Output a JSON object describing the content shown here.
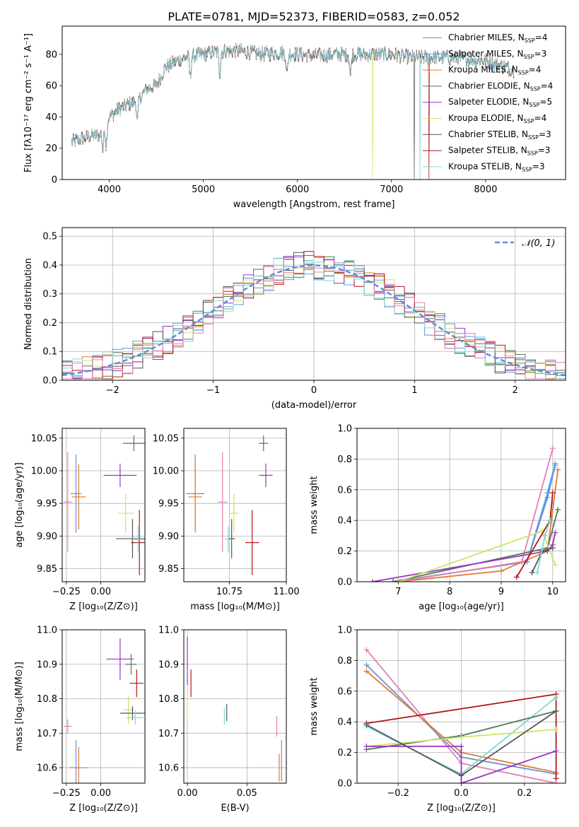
{
  "figure": {
    "title": "PLATE=0781, MJD=52373, FIBERID=0583, z=0.052"
  },
  "colors": {
    "Chabrier MILES": "#6a8fd8",
    "Salpeter MILES": "#4aa3e8",
    "Kroupa MILES": "#e07a2e",
    "Chabrier ELODIE": "#4f7a4f",
    "Salpeter ELODIE": "#9a32c8",
    "Kroupa ELODIE": "#cfe36a",
    "Chabrier STELIB": "#555555",
    "Salpeter STELIB": "#b3171a",
    "Kroupa STELIB": "#82d6dc",
    "pink": "#e67fb5",
    "normal": "#5b8fd6"
  },
  "chart_data": [
    {
      "id": "spectrum",
      "type": "line",
      "title": "PLATE=0781, MJD=52373, FIBERID=0583, z=0.052",
      "xlabel": "wavelength [Angstrom, rest frame]",
      "ylabel": "Flux [fλ10⁻¹⁷ erg cm⁻² s⁻¹ A⁻¹]",
      "xlim": [
        3500,
        8850
      ],
      "ylim": [
        0,
        98
      ],
      "xticks": [
        4000,
        5000,
        6000,
        7000,
        8000
      ],
      "yticks": [
        0,
        20,
        40,
        60,
        80
      ],
      "grid": false,
      "legend_position": "top-right",
      "legend": [
        {
          "name": "Chabrier MILES",
          "sub": "4"
        },
        {
          "name": "Salpeter MILES",
          "sub": "3"
        },
        {
          "name": "Kroupa MILES",
          "sub": "4"
        },
        {
          "name": "Chabrier ELODIE",
          "sub": "4"
        },
        {
          "name": "Salpeter ELODIE",
          "sub": "5"
        },
        {
          "name": "Kroupa ELODIE",
          "sub": "4"
        },
        {
          "name": "Chabrier STELIB",
          "sub": "3"
        },
        {
          "name": "Salpeter STELIB",
          "sub": "3"
        },
        {
          "name": "Kroupa STELIB",
          "sub": "3"
        }
      ],
      "continuum": {
        "x": [
          3600,
          3700,
          3800,
          3900,
          4000,
          4100,
          4200,
          4300,
          4400,
          4500,
          4600,
          4800,
          5000,
          5200,
          5400,
          5600,
          5800,
          6000,
          6200,
          6400,
          6600,
          6800,
          7000,
          7200,
          7400,
          7600,
          7800,
          8000,
          8200,
          8300
        ],
        "y": [
          24,
          26,
          28,
          28,
          40,
          45,
          48,
          50,
          58,
          60,
          72,
          78,
          80,
          82,
          82,
          80,
          81,
          80,
          79,
          80,
          80,
          80,
          80,
          78,
          78,
          78,
          77,
          76,
          72,
          70
        ]
      },
      "absorption": [
        3933,
        3968,
        4300,
        4861,
        5175,
        5890,
        6563
      ],
      "cutoffs": [
        {
          "series": "Kroupa ELODIE",
          "x": 6800
        },
        {
          "series": "Chabrier STELIB",
          "x": 7240
        },
        {
          "series": "Salpeter STELIB",
          "x": 7400
        },
        {
          "series": "Kroupa STELIB",
          "x": 7300
        }
      ]
    },
    {
      "id": "residuals",
      "type": "line",
      "xlabel": "(data-model)/error",
      "ylabel": "Normed distribution",
      "xlim": [
        -2.5,
        2.5
      ],
      "ylim": [
        0,
        0.53
      ],
      "xticks": [
        -2,
        -1,
        0,
        1,
        2
      ],
      "yticks": [
        0.0,
        0.1,
        0.2,
        0.3,
        0.4,
        0.5
      ],
      "grid": true,
      "legend_position": "top-right",
      "normal_label": "𝒩(0, 1)",
      "bin_width": 0.1
    },
    {
      "id": "age_vs_Z",
      "type": "scatter",
      "xlabel": "Z [log₁₀(Z/Z⊙)]",
      "ylabel": "age  [log₁₀(age/yr)]",
      "xlim": [
        -0.28,
        0.32
      ],
      "ylim": [
        9.83,
        10.065
      ],
      "xticks": [
        -0.25,
        0.0
      ],
      "yticks": [
        9.85,
        9.9,
        9.95,
        10.0,
        10.05
      ],
      "grid": true,
      "points": [
        {
          "color": "Chabrier MILES",
          "x": -0.18,
          "y": 9.965,
          "xerr": 0.04,
          "yerr": 0.06
        },
        {
          "color": "Kroupa MILES",
          "x": -0.16,
          "y": 9.96,
          "xerr": 0.05,
          "yerr": 0.05
        },
        {
          "color": "pink",
          "x": -0.24,
          "y": 9.952,
          "xerr": 0.03,
          "yerr": 0.076
        },
        {
          "color": "Chabrier ELODIE",
          "x": 0.24,
          "y": 10.042,
          "xerr": 0.08,
          "yerr": 0.012
        },
        {
          "color": "Salpeter ELODIE",
          "x": 0.14,
          "y": 9.993,
          "xerr": 0.12,
          "yerr": 0.018
        },
        {
          "color": "Kroupa ELODIE",
          "x": 0.18,
          "y": 9.935,
          "xerr": 0.06,
          "yerr": 0.03
        },
        {
          "color": "Chabrier STELIB",
          "x": 0.23,
          "y": 9.896,
          "xerr": 0.12,
          "yerr": 0.03
        },
        {
          "color": "Salpeter STELIB",
          "x": 0.28,
          "y": 9.89,
          "xerr": 0.06,
          "yerr": 0.05
        },
        {
          "color": "Kroupa STELIB",
          "x": 0.27,
          "y": 9.895,
          "xerr": 0.05,
          "yerr": 0.02
        }
      ]
    },
    {
      "id": "age_vs_mass",
      "type": "scatter",
      "xlabel": "mass [log₁₀(M/M⊙)]",
      "ylabel": "",
      "xlim": [
        10.55,
        11.0
      ],
      "ylim": [
        9.83,
        10.065
      ],
      "xticks": [
        10.75,
        11.0
      ],
      "yticks": [
        9.85,
        9.9,
        9.95,
        10.0,
        10.05
      ],
      "grid": true,
      "points": [
        {
          "color": "Chabrier MILES",
          "x": 10.6,
          "y": 9.965,
          "xerr": 0.04,
          "yerr": 0.06
        },
        {
          "color": "Kroupa MILES",
          "x": 10.6,
          "y": 9.96,
          "xerr": 0.03,
          "yerr": 0.05
        },
        {
          "color": "pink",
          "x": 10.72,
          "y": 9.952,
          "xerr": 0.02,
          "yerr": 0.076
        },
        {
          "color": "Chabrier ELODIE",
          "x": 10.9,
          "y": 10.042,
          "xerr": 0.02,
          "yerr": 0.012
        },
        {
          "color": "Salpeter ELODIE",
          "x": 10.91,
          "y": 9.993,
          "xerr": 0.03,
          "yerr": 0.018
        },
        {
          "color": "Kroupa ELODIE",
          "x": 10.77,
          "y": 9.935,
          "xerr": 0.02,
          "yerr": 0.03
        },
        {
          "color": "Chabrier STELIB",
          "x": 10.76,
          "y": 9.896,
          "xerr": 0.015,
          "yerr": 0.03
        },
        {
          "color": "Salpeter STELIB",
          "x": 10.85,
          "y": 9.89,
          "xerr": 0.03,
          "yerr": 0.05
        },
        {
          "color": "Kroupa STELIB",
          "x": 10.745,
          "y": 9.895,
          "xerr": 0.015,
          "yerr": 0.02
        }
      ]
    },
    {
      "id": "weight_vs_age",
      "type": "line",
      "xlabel": "age  [log₁₀(age/yr)]",
      "ylabel": "mass weight",
      "xlim": [
        6.2,
        10.25
      ],
      "ylim": [
        0,
        1.0
      ],
      "xticks": [
        7,
        8,
        9,
        10
      ],
      "yticks": [
        0.0,
        0.2,
        0.4,
        0.6,
        0.8,
        1.0
      ],
      "grid": true,
      "series": [
        {
          "color": "Salpeter MILES",
          "x": [
            6.9,
            9.5,
            9.9,
            10.05
          ],
          "y": [
            0.0,
            0.13,
            0.58,
            0.77
          ]
        },
        {
          "color": "Chabrier MILES",
          "x": [
            6.9,
            9.5,
            9.9,
            10.05
          ],
          "y": [
            0.0,
            0.13,
            0.55,
            0.76
          ]
        },
        {
          "color": "Kroupa MILES",
          "x": [
            7.0,
            9.0,
            9.9,
            10.1
          ],
          "y": [
            0.0,
            0.07,
            0.2,
            0.73
          ]
        },
        {
          "color": "pink",
          "x": [
            7.0,
            9.4,
            10.0
          ],
          "y": [
            0.0,
            0.13,
            0.87
          ]
        },
        {
          "color": "Chabrier ELODIE",
          "x": [
            6.9,
            9.9,
            10.1
          ],
          "y": [
            0.0,
            0.22,
            0.47
          ]
        },
        {
          "color": "Salpeter ELODIE",
          "x": [
            6.5,
            9.9,
            10.0,
            10.05
          ],
          "y": [
            0.0,
            0.2,
            0.24,
            0.32
          ]
        },
        {
          "color": "Kroupa ELODIE",
          "x": [
            7.0,
            9.8,
            10.05
          ],
          "y": [
            0.0,
            0.33,
            0.11
          ]
        },
        {
          "color": "Chabrier STELIB",
          "x": [
            9.6,
            9.8,
            10.0
          ],
          "y": [
            0.06,
            0.2,
            0.22
          ]
        },
        {
          "color": "Salpeter STELIB",
          "x": [
            9.3,
            9.95,
            10.0
          ],
          "y": [
            0.03,
            0.4,
            0.58
          ]
        },
        {
          "color": "Kroupa STELIB",
          "x": [
            9.7,
            9.85,
            9.95
          ],
          "y": [
            0.06,
            0.3,
            0.4
          ]
        }
      ]
    },
    {
      "id": "mass_vs_Z",
      "type": "scatter",
      "xlabel": "Z [log₁₀(Z/Z⊙)]",
      "ylabel": "mass [log₁₀(M/M⊙)]",
      "xlim": [
        -0.28,
        0.32
      ],
      "ylim": [
        10.555,
        11.0
      ],
      "xticks": [
        -0.25,
        0.0
      ],
      "yticks": [
        10.6,
        10.7,
        10.8,
        10.9,
        11.0
      ],
      "grid": true,
      "points": [
        {
          "color": "Chabrier MILES",
          "x": -0.18,
          "y": 10.6,
          "xerr": 0.04,
          "yerr": 0.08
        },
        {
          "color": "Kroupa MILES",
          "x": -0.16,
          "y": 10.6,
          "xerr": 0.07,
          "yerr": 0.06
        },
        {
          "color": "pink",
          "x": -0.24,
          "y": 10.72,
          "xerr": 0.03,
          "yerr": 0.02
        },
        {
          "color": "Salpeter ELODIE",
          "x": 0.14,
          "y": 10.915,
          "xerr": 0.1,
          "yerr": 0.06
        },
        {
          "color": "Chabrier ELODIE",
          "x": 0.22,
          "y": 10.9,
          "xerr": 0.04,
          "yerr": 0.03
        },
        {
          "color": "Salpeter STELIB",
          "x": 0.26,
          "y": 10.845,
          "xerr": 0.05,
          "yerr": 0.04
        },
        {
          "color": "Kroupa ELODIE",
          "x": 0.2,
          "y": 10.768,
          "xerr": 0.04,
          "yerr": 0.04
        },
        {
          "color": "Chabrier STELIB",
          "x": 0.23,
          "y": 10.758,
          "xerr": 0.09,
          "yerr": 0.02
        },
        {
          "color": "Kroupa STELIB",
          "x": 0.25,
          "y": 10.745,
          "xerr": 0.06,
          "yerr": 0.02
        }
      ]
    },
    {
      "id": "mass_vs_ebv",
      "type": "scatter",
      "xlabel": "E(B-V)",
      "ylabel": "",
      "xlim": [
        -0.003,
        0.083
      ],
      "ylim": [
        10.555,
        11.0
      ],
      "xticks": [
        0.0,
        0.05
      ],
      "yticks": [
        10.6,
        10.7,
        10.8,
        10.9,
        11.0
      ],
      "grid": true,
      "points": [
        {
          "color": "Salpeter ELODIE",
          "x": 0.0,
          "y": 10.91,
          "xerr": 0.0,
          "yerr": 0.07
        },
        {
          "color": "Salpeter STELIB",
          "x": 0.003,
          "y": 10.845,
          "xerr": 0.0,
          "yerr": 0.04
        },
        {
          "color": "Kroupa ELODIE",
          "x": 0.0,
          "y": 10.77,
          "xerr": 0.0,
          "yerr": 0.04
        },
        {
          "color": "Kroupa STELIB",
          "x": 0.031,
          "y": 10.75,
          "xerr": 0.0,
          "yerr": 0.025
        },
        {
          "color": "Chabrier STELIB",
          "x": 0.033,
          "y": 10.76,
          "xerr": 0.0,
          "yerr": 0.025
        },
        {
          "color": "pink",
          "x": 0.075,
          "y": 10.72,
          "xerr": 0.0,
          "yerr": 0.03
        },
        {
          "color": "Kroupa MILES",
          "x": 0.077,
          "y": 10.6,
          "xerr": 0.0,
          "yerr": 0.04
        },
        {
          "color": "Chabrier MILES",
          "x": 0.079,
          "y": 10.62,
          "xerr": 0.0,
          "yerr": 0.06
        }
      ]
    },
    {
      "id": "weight_vs_Z",
      "type": "line",
      "xlabel": "Z [log₁₀(Z/Z⊙)]",
      "ylabel": "mass weight",
      "xlim": [
        -0.33,
        0.33
      ],
      "ylim": [
        0,
        1.0
      ],
      "xticks": [
        -0.2,
        0.0,
        0.2
      ],
      "yticks": [
        0.0,
        0.2,
        0.4,
        0.6,
        0.8,
        1.0
      ],
      "grid": true,
      "series": [
        {
          "color": "pink",
          "x": [
            -0.3,
            0.0,
            0.3
          ],
          "y": [
            0.87,
            0.13,
            0.0
          ]
        },
        {
          "color": "Chabrier MILES",
          "x": [
            -0.3,
            0.0,
            0.3
          ],
          "y": [
            0.77,
            0.17,
            0.06
          ]
        },
        {
          "color": "Kroupa MILES",
          "x": [
            -0.3,
            0.0,
            0.3
          ],
          "y": [
            0.73,
            0.2,
            0.07
          ]
        },
        {
          "color": "Salpeter STELIB",
          "x": [
            -0.3,
            0.3,
            0.3
          ],
          "y": [
            0.39,
            0.58,
            0.03
          ]
        },
        {
          "color": "Kroupa STELIB",
          "x": [
            -0.3,
            0.0,
            0.3
          ],
          "y": [
            0.37,
            0.06,
            0.56
          ]
        },
        {
          "color": "Chabrier ELODIE",
          "x": [
            -0.3,
            0.0,
            0.3
          ],
          "y": [
            0.22,
            0.31,
            0.47
          ]
        },
        {
          "color": "Kroupa ELODIE",
          "x": [
            -0.3,
            0.0,
            0.3
          ],
          "y": [
            0.24,
            0.3,
            0.35
          ]
        },
        {
          "color": "Salpeter ELODIE",
          "x": [
            -0.3,
            0.0,
            0.0,
            0.3
          ],
          "y": [
            0.24,
            0.24,
            0.0,
            0.21
          ]
        },
        {
          "color": "Chabrier STELIB",
          "x": [
            -0.3,
            0.0,
            0.3
          ],
          "y": [
            0.38,
            0.05,
            0.47
          ]
        }
      ]
    }
  ]
}
